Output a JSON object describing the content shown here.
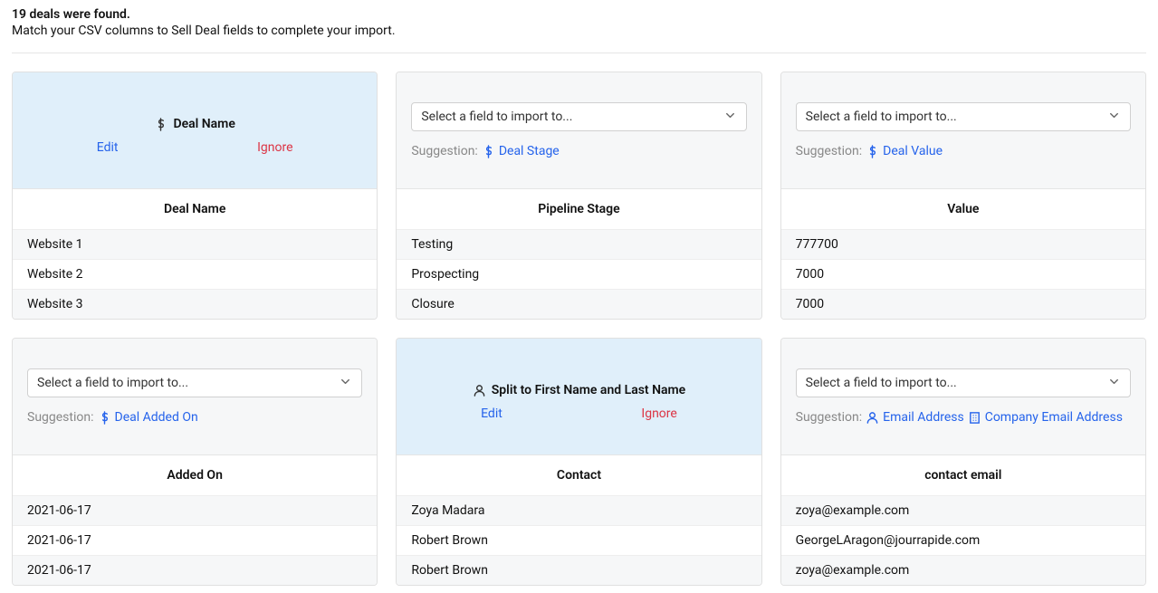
{
  "intro": {
    "countLine": "19 deals were found.",
    "sub": "Match your CSV columns to Sell Deal fields to complete your import."
  },
  "ui": {
    "selectPlaceholder": "Select a field to import to...",
    "suggestionLabel": "Suggestion:",
    "editLabel": "Edit",
    "ignoreLabel": "Ignore"
  },
  "colors": {
    "link": "#2563eb",
    "danger": "#dc3545",
    "muted": "#888888",
    "iconStroke": "#333333"
  },
  "cards": [
    {
      "state": "mapped",
      "mappedIcon": "dollar",
      "mappedTitle": "Deal Name",
      "columnHeader": "Deal Name",
      "rows": [
        "Website 1",
        "Website 2",
        "Website 3"
      ]
    },
    {
      "state": "unmapped",
      "suggestions": [
        {
          "icon": "dollar",
          "label": "Deal Stage"
        }
      ],
      "columnHeader": "Pipeline Stage",
      "rows": [
        "Testing",
        "Prospecting",
        "Closure"
      ]
    },
    {
      "state": "unmapped",
      "suggestions": [
        {
          "icon": "dollar",
          "label": "Deal Value"
        }
      ],
      "columnHeader": "Value",
      "rows": [
        "777700",
        "7000",
        "7000"
      ]
    },
    {
      "state": "unmapped",
      "suggestions": [
        {
          "icon": "dollar",
          "label": "Deal Added On"
        }
      ],
      "columnHeader": "Added On",
      "rows": [
        "2021-06-17",
        "2021-06-17",
        "2021-06-17"
      ]
    },
    {
      "state": "mapped",
      "mappedIcon": "person",
      "mappedTitle": "Split to First Name and Last Name",
      "columnHeader": "Contact",
      "rows": [
        "Zoya Madara",
        "Robert Brown",
        "Robert Brown"
      ]
    },
    {
      "state": "unmapped",
      "suggestions": [
        {
          "icon": "person",
          "label": "Email Address"
        },
        {
          "icon": "building",
          "label": "Company Email Address"
        }
      ],
      "columnHeader": "contact email",
      "rows": [
        "zoya@example.com",
        "GeorgeLAragon@jourrapide.com",
        "zoya@example.com"
      ]
    }
  ]
}
